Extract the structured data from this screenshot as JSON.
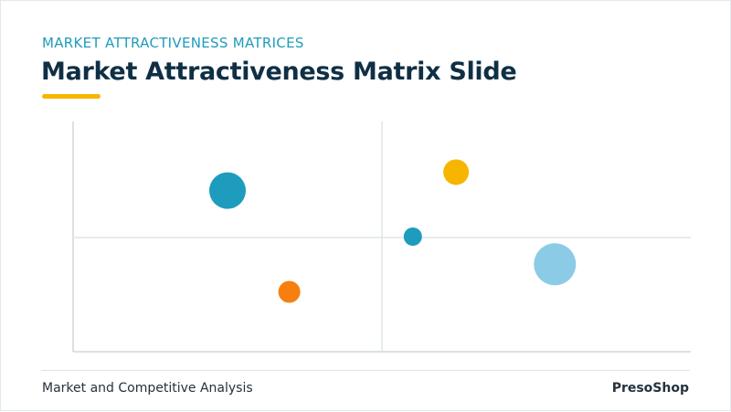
{
  "header": {
    "section_label": "MARKET ATTRACTIVENESS MATRICES",
    "title": "Market Attractiveness Matrix Slide"
  },
  "footer": {
    "left_text": "Market and Competitive Analysis",
    "brand": "PresoShop"
  },
  "colors": {
    "title": "#0f2f45",
    "accent_teal": "#1e9cbd",
    "accent_yellow": "#f7b500",
    "axis": "#cfd6dc",
    "grid": "#dde6ea"
  },
  "chart_data": {
    "type": "scatter",
    "xlim": [
      0,
      100
    ],
    "ylim": [
      0,
      100
    ],
    "grid": "quadrant midlines",
    "points": [
      {
        "x": 25,
        "y": 70,
        "size": 20,
        "color": "#1e9cbd"
      },
      {
        "x": 35,
        "y": 26,
        "size": 12,
        "color": "#f77f0f"
      },
      {
        "x": 62,
        "y": 78,
        "size": 14,
        "color": "#f7b500"
      },
      {
        "x": 55,
        "y": 50,
        "size": 10,
        "color": "#1e9cbd"
      },
      {
        "x": 78,
        "y": 38,
        "size": 23,
        "color": "#8ccbe6"
      }
    ]
  }
}
